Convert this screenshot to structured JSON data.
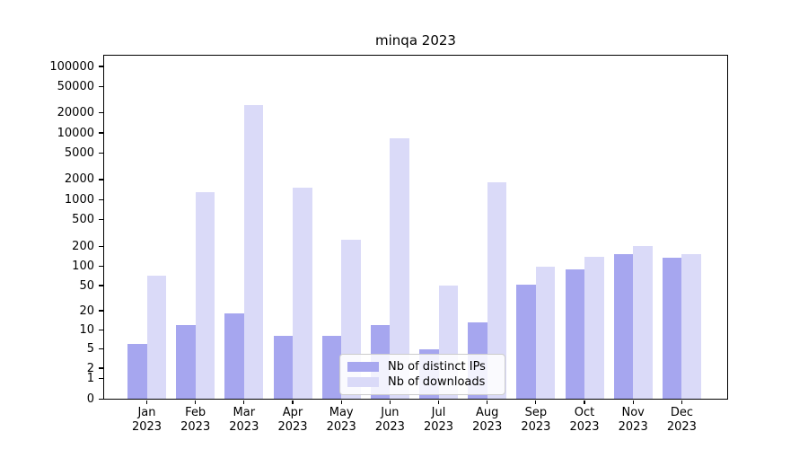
{
  "title": "minqa 2023",
  "legend": {
    "entries": [
      {
        "label": "Nb of distinct IPs",
        "swatch_color": "#a7a7ef"
      },
      {
        "label": "Nb of downloads",
        "swatch_color": "#dadaf8"
      }
    ]
  },
  "colors": {
    "bar_base": "85,85,224",
    "ips_alpha": 0.52,
    "downloads_alpha": 0.22,
    "grid_major": "#c2c2c2",
    "grid_minor": "#ececec"
  },
  "chart_data": {
    "type": "bar",
    "title": "minqa 2023",
    "categories": [
      "Jan 2023",
      "Feb 2023",
      "Mar 2023",
      "Apr 2023",
      "May 2023",
      "Jun 2023",
      "Jul 2023",
      "Aug 2023",
      "Sep 2023",
      "Oct 2023",
      "Nov 2023",
      "Dec 2023"
    ],
    "series": [
      {
        "name": "Nb of distinct IPs",
        "color": "#a7a7ef",
        "values": [
          6,
          12,
          18,
          8,
          8,
          12,
          5,
          13,
          52,
          90,
          155,
          135
        ]
      },
      {
        "name": "Nb of downloads",
        "color": "#dadaf8",
        "values": [
          72,
          1300,
          26000,
          1500,
          250,
          8300,
          50,
          1800,
          100,
          140,
          200,
          155
        ]
      }
    ],
    "xlabel": "",
    "ylabel": "",
    "yscale": "symlog",
    "yticks": [
      100000,
      50000,
      20000,
      10000,
      5000,
      2000,
      1000,
      500,
      200,
      100,
      50,
      20,
      10,
      5,
      2,
      1,
      0
    ],
    "ylim": [
      0,
      200000
    ],
    "grid": "horizontal, major and minor",
    "legend_position": "lower center inside plot"
  }
}
